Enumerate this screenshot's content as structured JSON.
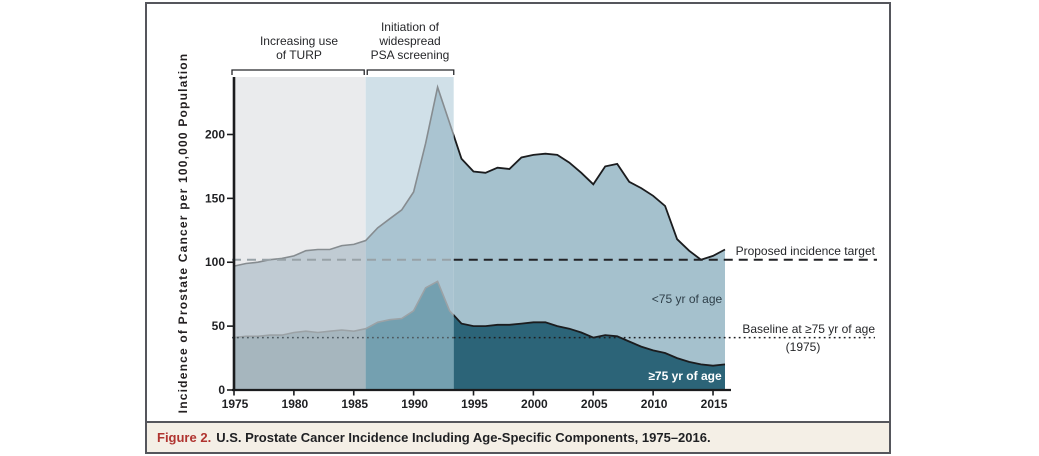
{
  "colors": {
    "frame_border": "#55565c",
    "caption_bg": "#f4efe6",
    "caption_red": "#b03430",
    "caption_text": "#1f2023"
  },
  "figure": {
    "caption_label": "Figure 2.",
    "caption_text": "U.S. Prostate Cancer Incidence Including Age-Specific Components, 1975–2016."
  },
  "chart_data": {
    "type": "area",
    "title": "",
    "xlabel": "",
    "ylabel": "Incidence of Prostate Cancer per 100,000 Population",
    "xlim": [
      1975,
      2016
    ],
    "ylim": [
      0,
      245
    ],
    "grid": false,
    "x_ticks": [
      "1975",
      "1980",
      "1985",
      "1990",
      "1995",
      "2000",
      "2005",
      "2010",
      "2015"
    ],
    "x_tick_years": [
      1975,
      1980,
      1985,
      1990,
      1995,
      2000,
      2005,
      2010,
      2015
    ],
    "y_ticks": [
      "0",
      "50",
      "100",
      "150",
      "200"
    ],
    "y_tick_values": [
      0,
      50,
      100,
      150,
      200
    ],
    "years": [
      1975,
      1976,
      1977,
      1978,
      1979,
      1980,
      1981,
      1982,
      1983,
      1984,
      1985,
      1986,
      1987,
      1988,
      1989,
      1990,
      1991,
      1992,
      1993,
      1994,
      1995,
      1996,
      1997,
      1998,
      1999,
      2000,
      2001,
      2002,
      2003,
      2004,
      2005,
      2006,
      2007,
      2008,
      2009,
      2010,
      2011,
      2012,
      2013,
      2014,
      2015,
      2016
    ],
    "series": [
      {
        "id": "under75",
        "name": "<75 yr of age",
        "values": [
          97,
          99,
          100,
          102,
          103,
          105,
          109,
          110,
          110,
          113,
          114,
          117,
          127,
          134,
          141,
          155,
          193,
          237,
          209,
          181,
          171,
          170,
          174,
          173,
          182,
          184,
          185,
          184,
          178,
          170,
          161,
          175,
          177,
          163,
          158,
          152,
          144,
          118,
          109,
          102,
          105,
          110
        ],
        "region_fills": [
          "#c0cbd3",
          "#aac4d1",
          "#a5c1cd"
        ],
        "line_gray": "#868c90"
      },
      {
        "id": "over75",
        "name": "≥75 yr of age",
        "values": [
          41,
          42,
          42,
          43,
          43,
          45,
          46,
          45,
          46,
          47,
          46,
          48,
          53,
          55,
          56,
          62,
          80,
          85,
          62,
          52,
          50,
          50,
          51,
          51,
          52,
          53,
          53,
          50,
          48,
          45,
          41,
          43,
          42,
          38,
          34,
          31,
          29,
          25,
          22,
          20,
          19,
          20
        ],
        "region_fills": [
          "#a6b6be",
          "#74a0b0",
          "#2c6478"
        ],
        "line_gray": "#9ba2a6"
      }
    ],
    "bands": [
      {
        "name": "turp",
        "span_years": [
          1975,
          1986
        ],
        "color": "#eaebed",
        "label_lines": [
          "Increasing use",
          "of TURP"
        ]
      },
      {
        "name": "psa",
        "span_years": [
          1986,
          1993.35
        ],
        "color": "#d0e0e8",
        "label_lines": [
          "Initiation of",
          "widespread",
          "PSA screening"
        ]
      }
    ],
    "annotations": {
      "target": {
        "label": "Proposed incidence target",
        "value": 102
      },
      "baseline": {
        "label": "Baseline at ≥75 yr of age",
        "label2": "(1975)",
        "value": 41
      }
    },
    "chart_colors": {
      "line_black": "#1b1c1e",
      "dashed_gray": "#98a2a7",
      "dashed_black": "#222326",
      "dotted_gray": "#4e5a61",
      "dotted_black": "#1d1e20",
      "spine": "#1b1c1e",
      "bracket": "#26272a"
    },
    "legend_position": "in-plot labels"
  }
}
